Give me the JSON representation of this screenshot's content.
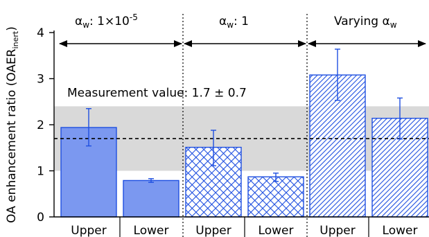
{
  "chart_data": {
    "type": "bar",
    "ylabel": "OA enhancement ratio (OAER",
    "ylabel_sub": "inert",
    "ylabel_close": ")",
    "ylim": [
      0,
      4.2
    ],
    "yticks": [
      "0",
      "1",
      "2",
      "3",
      "4"
    ],
    "categories": [
      "Upper",
      "Lower",
      "Upper",
      "Lower",
      "Upper",
      "Lower"
    ],
    "values": [
      1.94,
      0.79,
      1.51,
      0.87,
      3.08,
      2.14
    ],
    "errors_low": [
      0.4,
      0.04,
      0.4,
      0.1,
      0.55,
      0.45
    ],
    "errors_high": [
      0.41,
      0.04,
      0.37,
      0.08,
      0.56,
      0.44
    ],
    "patterns": [
      "solid",
      "solid",
      "crosshatch",
      "crosshatch",
      "diagonal",
      "diagonal"
    ],
    "groups": [
      {
        "label_alpha": "α",
        "label_sub": "w",
        "label_rest": ": 1×10",
        "label_sup": "-5"
      },
      {
        "label_alpha": "α",
        "label_sub": "w",
        "label_rest": ": 1",
        "label_sup": ""
      },
      {
        "label_prefix": "Varying ",
        "label_alpha": "α",
        "label_sub": "w"
      }
    ],
    "measurement": {
      "label": "Measurement value: 1.7 ± 0.7",
      "value": 1.7,
      "band": [
        1.0,
        2.4
      ]
    },
    "grid": false,
    "colors": {
      "bar_fill": "#7b98f0",
      "bar_edge": "#1e4fe0",
      "band": "#d9d9d9"
    }
  }
}
